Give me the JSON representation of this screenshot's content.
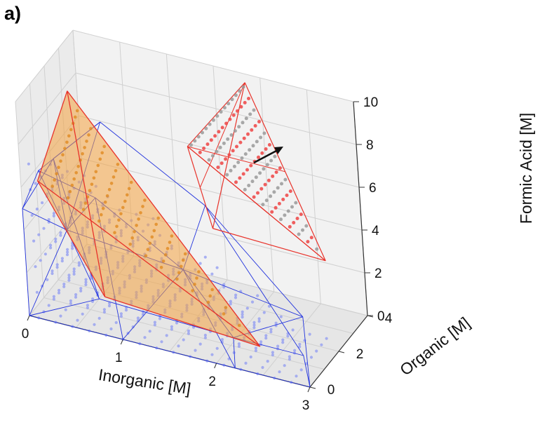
{
  "panel_label": "a)",
  "chart_data": {
    "type": "scatter3d",
    "title": "",
    "xlabel": "Inorganic [M]",
    "ylabel": "Organic [M]",
    "zlabel": "Formic Acid [M]",
    "xlim": [
      0,
      3
    ],
    "ylim": [
      0,
      4
    ],
    "zlim": [
      0,
      10
    ],
    "xticks": [
      "0",
      "1",
      "2",
      "3"
    ],
    "yticks": [
      "0",
      "2",
      "4"
    ],
    "zticks": [
      "0",
      "2",
      "4",
      "6",
      "8",
      "10"
    ],
    "grid": true,
    "legend": "none",
    "colors": {
      "blue_hull": "#2233dd",
      "blue_points": "#8f9af2",
      "red_hull": "#e8322a",
      "orange_fill": "#f4a340",
      "gray_points": "#9a9a9a",
      "red_points": "#ee4444",
      "arrow": "#111111"
    },
    "series": [
      {
        "role": "blue-region-points-and-convex-hull",
        "x_range": [
          0,
          3
        ],
        "y_range": [
          0,
          2.6
        ],
        "z_range": [
          0,
          7.5
        ]
      },
      {
        "role": "orange-region-red-hull",
        "vertices": [
          [
            0.15,
            0.2,
            6.3
          ],
          [
            0.3,
            1.6,
            9.5
          ],
          [
            2.3,
            1.1,
            0.2
          ],
          [
            0.8,
            0.2,
            1.6
          ]
        ]
      },
      {
        "role": "inset-red-region-gray-and-red-points",
        "x_range": [
          1.3,
          3
        ],
        "y_range": [
          2.3,
          4
        ],
        "z_range": [
          1.2,
          10
        ]
      }
    ],
    "annotations": [
      {
        "type": "arrow",
        "from": "orange-region",
        "to": "inset-red-region"
      }
    ]
  }
}
